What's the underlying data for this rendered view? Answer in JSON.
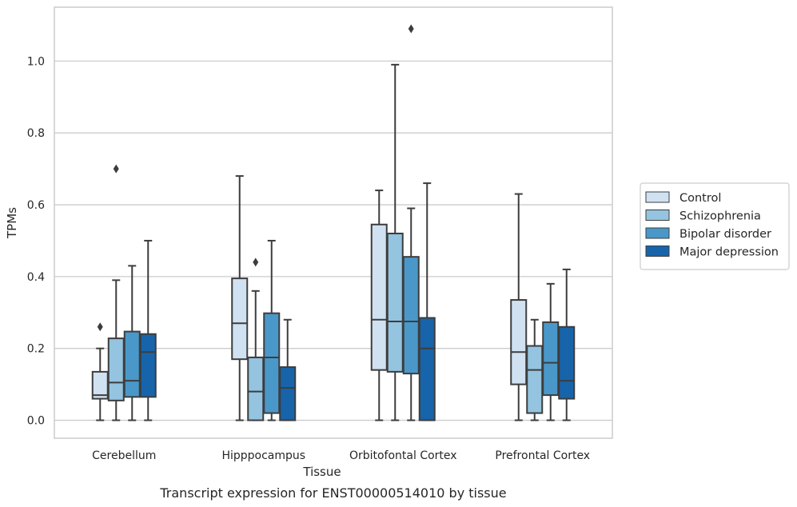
{
  "chart_data": {
    "type": "box",
    "title": "",
    "caption": "Transcript expression for ENST00000514010 by tissue",
    "xlabel": "Tissue",
    "ylabel": "TPMs",
    "ylim": [
      -0.05,
      1.15
    ],
    "yticks": [
      "0.0",
      "0.2",
      "0.4",
      "0.6",
      "0.8",
      "1.0"
    ],
    "yticks_values": [
      0.0,
      0.2,
      0.4,
      0.6,
      0.8,
      1.0
    ],
    "grid": "horizontal",
    "legend_position": "right",
    "categories": [
      "Cerebellum",
      "Hipppocampus",
      "Orbitofontal Cortex",
      "Prefrontal Cortex"
    ],
    "series": [
      {
        "name": "Control",
        "color": "#d0e1f2",
        "boxes": [
          {
            "whislo": 0.0,
            "q1": 0.06,
            "med": 0.07,
            "q3": 0.135,
            "whishi": 0.2,
            "fliers": [
              0.26
            ]
          },
          {
            "whislo": 0.0,
            "q1": 0.17,
            "med": 0.27,
            "q3": 0.395,
            "whishi": 0.68,
            "fliers": []
          },
          {
            "whislo": 0.0,
            "q1": 0.14,
            "med": 0.28,
            "q3": 0.545,
            "whishi": 0.64,
            "fliers": []
          },
          {
            "whislo": 0.0,
            "q1": 0.1,
            "med": 0.19,
            "q3": 0.335,
            "whishi": 0.63,
            "fliers": []
          }
        ]
      },
      {
        "name": "Schizophrenia",
        "color": "#94c4df",
        "boxes": [
          {
            "whislo": 0.0,
            "q1": 0.055,
            "med": 0.105,
            "q3": 0.228,
            "whishi": 0.39,
            "fliers": [
              0.7
            ]
          },
          {
            "whislo": 0.0,
            "q1": 0.0,
            "med": 0.08,
            "q3": 0.175,
            "whishi": 0.36,
            "fliers": [
              0.44
            ]
          },
          {
            "whislo": 0.0,
            "q1": 0.135,
            "med": 0.275,
            "q3": 0.52,
            "whishi": 0.99,
            "fliers": []
          },
          {
            "whislo": 0.0,
            "q1": 0.02,
            "med": 0.14,
            "q3": 0.207,
            "whishi": 0.28,
            "fliers": []
          }
        ]
      },
      {
        "name": "Bipolar disorder",
        "color": "#4a98c9",
        "boxes": [
          {
            "whislo": 0.0,
            "q1": 0.065,
            "med": 0.11,
            "q3": 0.247,
            "whishi": 0.43,
            "fliers": []
          },
          {
            "whislo": 0.0,
            "q1": 0.02,
            "med": 0.175,
            "q3": 0.298,
            "whishi": 0.5,
            "fliers": []
          },
          {
            "whislo": 0.0,
            "q1": 0.13,
            "med": 0.275,
            "q3": 0.455,
            "whishi": 0.59,
            "fliers": [
              1.09
            ]
          },
          {
            "whislo": 0.0,
            "q1": 0.07,
            "med": 0.16,
            "q3": 0.273,
            "whishi": 0.38,
            "fliers": []
          }
        ]
      },
      {
        "name": "Major depression",
        "color": "#1764ab",
        "boxes": [
          {
            "whislo": 0.0,
            "q1": 0.065,
            "med": 0.19,
            "q3": 0.24,
            "whishi": 0.5,
            "fliers": []
          },
          {
            "whislo": 0.0,
            "q1": 0.0,
            "med": 0.09,
            "q3": 0.148,
            "whishi": 0.28,
            "fliers": []
          },
          {
            "whislo": 0.0,
            "q1": 0.0,
            "med": 0.2,
            "q3": 0.285,
            "whishi": 0.66,
            "fliers": []
          },
          {
            "whislo": 0.0,
            "q1": 0.06,
            "med": 0.11,
            "q3": 0.26,
            "whishi": 0.42,
            "fliers": []
          }
        ]
      }
    ]
  }
}
